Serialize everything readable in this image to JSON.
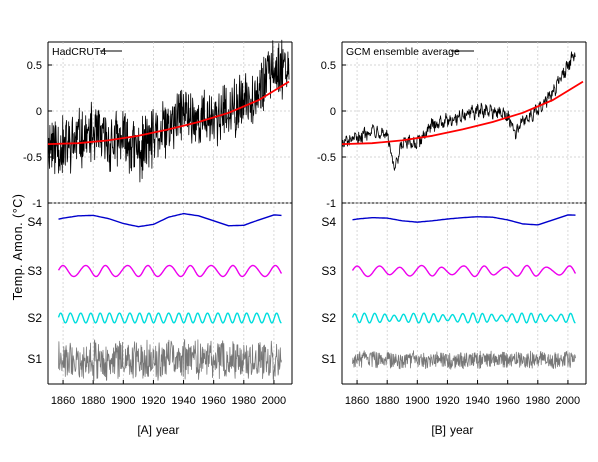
{
  "chart_data": [
    {
      "type": "line",
      "panel_label": "[A]",
      "xlabel": "year",
      "ylabel": "Temp. Amon. (°C)",
      "xlim": [
        1850,
        2012
      ],
      "x_ticks": [
        "1860",
        "1880",
        "1900",
        "1920",
        "1940",
        "1960",
        "1980",
        "2000"
      ],
      "ylim": [
        -1,
        0.75
      ],
      "y_ticks": [
        "0.5",
        "0",
        "-0.5",
        "-1"
      ],
      "grid": true,
      "legend": "top-left",
      "series": [
        {
          "name": "HadCRUT4",
          "color": "#000000",
          "x": [
            1850,
            1860,
            1870,
            1880,
            1890,
            1900,
            1910,
            1920,
            1930,
            1940,
            1950,
            1960,
            1970,
            1980,
            1990,
            2000,
            2010
          ],
          "y": [
            -0.35,
            -0.4,
            -0.3,
            -0.25,
            -0.35,
            -0.3,
            -0.45,
            -0.3,
            -0.2,
            0.0,
            -0.1,
            -0.05,
            -0.05,
            0.1,
            0.25,
            0.45,
            0.5
          ]
        },
        {
          "name": "",
          "color": "#ff0000",
          "x": [
            1850,
            1870,
            1890,
            1910,
            1930,
            1950,
            1970,
            1990,
            2010
          ],
          "y": [
            -0.36,
            -0.35,
            -0.32,
            -0.27,
            -0.2,
            -0.12,
            -0.02,
            0.12,
            0.32
          ]
        }
      ],
      "components": [
        {
          "name": "S4",
          "color": "#0000cc",
          "x": [
            1850,
            1860,
            1870,
            1880,
            1890,
            1900,
            1910,
            1920,
            1930,
            1940,
            1950,
            1960,
            1970,
            1980,
            1990,
            2000,
            2010
          ],
          "y": [
            -0.3,
            0.1,
            0.35,
            0.4,
            0.05,
            -0.5,
            -0.85,
            -0.6,
            0.2,
            0.6,
            0.35,
            -0.2,
            -0.75,
            -0.7,
            -0.1,
            0.45,
            0.35
          ]
        },
        {
          "name": "S3",
          "color": "#ee00ee",
          "x": [],
          "y": []
        },
        {
          "name": "S2",
          "color": "#00dddd",
          "x": [],
          "y": []
        },
        {
          "name": "S1",
          "color": "#777777",
          "x": [],
          "y": []
        }
      ]
    },
    {
      "type": "line",
      "panel_label": "[B]",
      "xlabel": "year",
      "ylabel": "Temp. Amon. (°C)",
      "xlim": [
        1850,
        2012
      ],
      "x_ticks": [
        "1860",
        "1880",
        "1900",
        "1920",
        "1940",
        "1960",
        "1980",
        "2000"
      ],
      "ylim": [
        -1,
        0.75
      ],
      "y_ticks": [
        "0.5",
        "0",
        "-0.5",
        "-1"
      ],
      "grid": true,
      "legend": "top-left",
      "series": [
        {
          "name": "GCM ensemble average",
          "color": "#000000",
          "x": [
            1850,
            1860,
            1870,
            1880,
            1885,
            1890,
            1900,
            1910,
            1920,
            1930,
            1940,
            1950,
            1960,
            1965,
            1970,
            1980,
            1990,
            2000,
            2005
          ],
          "y": [
            -0.35,
            -0.3,
            -0.2,
            -0.25,
            -0.65,
            -0.35,
            -0.35,
            -0.15,
            -0.1,
            -0.05,
            0.0,
            0.0,
            -0.05,
            -0.25,
            -0.1,
            0.0,
            0.2,
            0.5,
            0.62
          ]
        },
        {
          "name": "",
          "color": "#ff0000",
          "x": [
            1850,
            1870,
            1890,
            1910,
            1930,
            1950,
            1970,
            1990,
            2010
          ],
          "y": [
            -0.36,
            -0.35,
            -0.32,
            -0.27,
            -0.2,
            -0.12,
            -0.02,
            0.12,
            0.32
          ]
        }
      ],
      "components": [
        {
          "name": "S4",
          "color": "#0000cc",
          "x": [
            1850,
            1860,
            1870,
            1880,
            1890,
            1900,
            1910,
            1920,
            1930,
            1940,
            1950,
            1960,
            1970,
            1980,
            1990,
            2000,
            2010
          ],
          "y": [
            -0.3,
            0.0,
            0.15,
            0.1,
            -0.2,
            -0.35,
            -0.2,
            0.0,
            0.15,
            0.25,
            0.2,
            -0.1,
            -0.55,
            -0.65,
            -0.1,
            0.45,
            0.4
          ]
        },
        {
          "name": "S3",
          "color": "#ee00ee",
          "x": [],
          "y": []
        },
        {
          "name": "S2",
          "color": "#00dddd",
          "x": [],
          "y": []
        },
        {
          "name": "S1",
          "color": "#777777",
          "x": [],
          "y": []
        }
      ]
    }
  ]
}
